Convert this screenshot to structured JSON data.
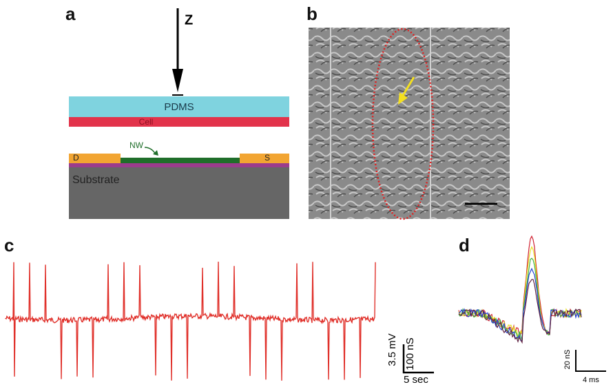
{
  "panel_a": {
    "label": "a",
    "axis": "Z",
    "layers": {
      "top": "PDMS",
      "cell": "Cell",
      "wire": "NW",
      "drain": "D",
      "source": "S",
      "base": "Substrate"
    }
  },
  "panel_b": {
    "label": "b"
  },
  "panel_c": {
    "label": "c",
    "scale_voltage": "3.5 mV",
    "scale_conductance": "100 nS",
    "scale_time": "5 sec"
  },
  "panel_d": {
    "label": "d",
    "scale_conductance": "20 nS",
    "scale_time": "4 ms"
  }
}
